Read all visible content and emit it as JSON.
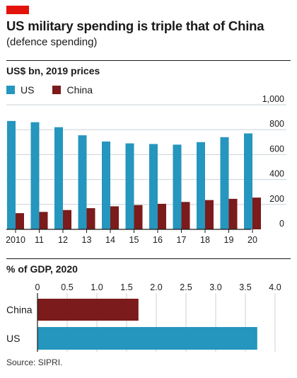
{
  "header": {
    "title": "US military spending is triple that of China",
    "subtitle": "(defence spending)"
  },
  "colors": {
    "us": "#2596be",
    "china": "#7b1b1b",
    "accent_tab": "#e3120b"
  },
  "legend": {
    "us": "US",
    "china": "China"
  },
  "source": "Source: SIPRI.",
  "chart_data": [
    {
      "type": "bar",
      "title": "US$ bn, 2019 prices",
      "categories": [
        "2010",
        "11",
        "12",
        "13",
        "14",
        "15",
        "16",
        "17",
        "18",
        "19",
        "20"
      ],
      "series": [
        {
          "name": "US",
          "values": [
            870,
            860,
            820,
            755,
            705,
            690,
            685,
            680,
            700,
            740,
            770
          ]
        },
        {
          "name": "China",
          "values": [
            130,
            140,
            155,
            170,
            185,
            195,
            205,
            220,
            235,
            245,
            255
          ]
        }
      ],
      "ylim": [
        0,
        1000
      ],
      "yticks": [
        0,
        200,
        400,
        600,
        800,
        1000
      ],
      "ytick_labels": [
        "0",
        "200",
        "400",
        "600",
        "800",
        "1,000"
      ],
      "grid": true
    },
    {
      "type": "bar",
      "orientation": "horizontal",
      "title": "% of GDP, 2020",
      "categories": [
        "China",
        "US"
      ],
      "values": [
        1.7,
        3.7
      ],
      "xlim": [
        0,
        4.0
      ],
      "xticks": [
        0,
        0.5,
        1.0,
        1.5,
        2.0,
        2.5,
        3.0,
        3.5,
        4.0
      ],
      "xtick_labels": [
        "0",
        "0.5",
        "1.0",
        "1.5",
        "2.0",
        "2.5",
        "3.0",
        "3.5",
        "4.0"
      ],
      "grid": true
    }
  ]
}
